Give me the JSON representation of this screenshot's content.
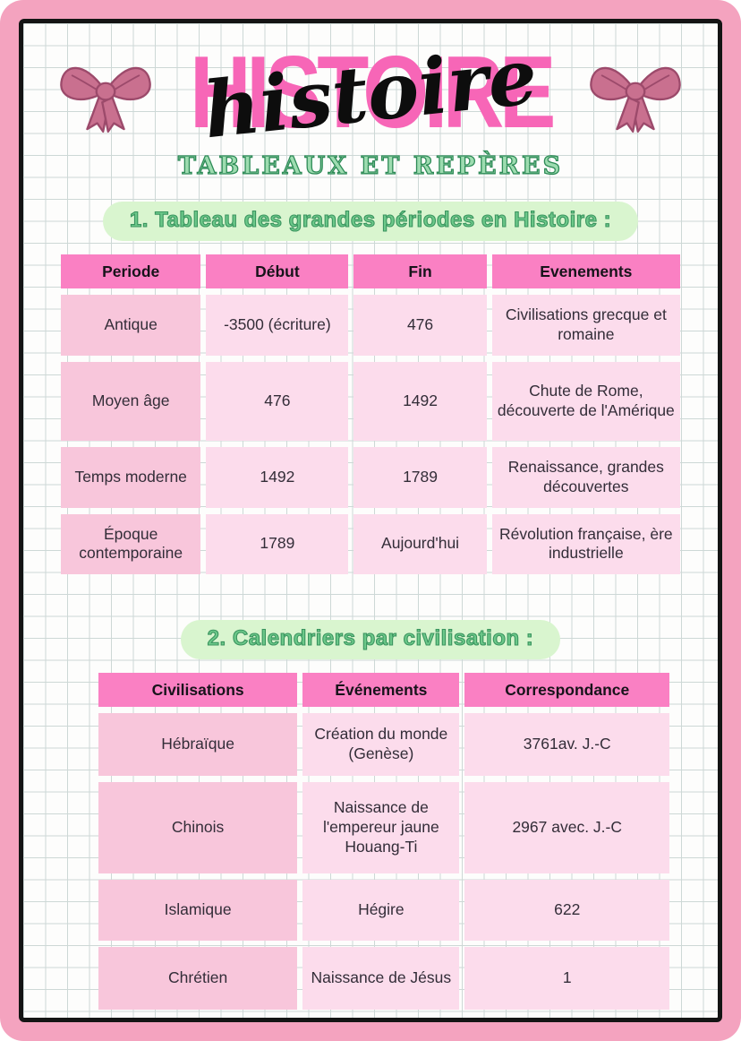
{
  "header": {
    "title_block": "HISTOIRE",
    "title_script": "histoire",
    "subtitle": "TABLEAUX ET REPÈRES"
  },
  "sections": [
    {
      "heading": "1. Tableau des grandes périodes en Histoire :",
      "table": {
        "headers": [
          "Periode",
          "Début",
          "Fin",
          "Evenements"
        ],
        "rows": [
          [
            "Antique",
            "-3500 (écriture)",
            "476",
            "Civilisations grecque et romaine"
          ],
          [
            "Moyen âge",
            "476",
            "1492",
            "Chute de Rome, découverte de l'Amérique"
          ],
          [
            "Temps moderne",
            "1492",
            "1789",
            "Renaissance, grandes découvertes"
          ],
          [
            "Époque contemporaine",
            "1789",
            "Aujourd'hui",
            "Révolution française, ère industrielle"
          ]
        ]
      }
    },
    {
      "heading": "2. Calendriers par civilisation :",
      "table": {
        "headers": [
          "Civilisations",
          "Événements",
          "Correspondance"
        ],
        "rows": [
          [
            "Hébraïque",
            "Création du monde (Genèse)",
            "3761av. J.-C"
          ],
          [
            "Chinois",
            "Naissance de l'empereur jaune Houang-Ti",
            "2967 avec. J.-C"
          ],
          [
            "Islamique",
            "Hégire",
            "622"
          ],
          [
            "Chrétien",
            "Naissance de Jésus",
            "1"
          ]
        ]
      }
    }
  ],
  "icons": {
    "left": "bow-icon",
    "right": "bow-icon"
  },
  "colors": {
    "frame_pink": "#f4a3bf",
    "title_pink": "#f766b7",
    "table_header_pink": "#fa80c3",
    "row_label_pink": "#f8c6db",
    "cell_pink": "#fcdcec",
    "subtitle_green_fill": "#9ddcb0",
    "heading_green_fill": "#6cc889",
    "green_outline": "#2e8b57",
    "pill_background_green": "#d9f5cf",
    "bow_pink": "#c9708f",
    "border_ink": "#141414"
  }
}
